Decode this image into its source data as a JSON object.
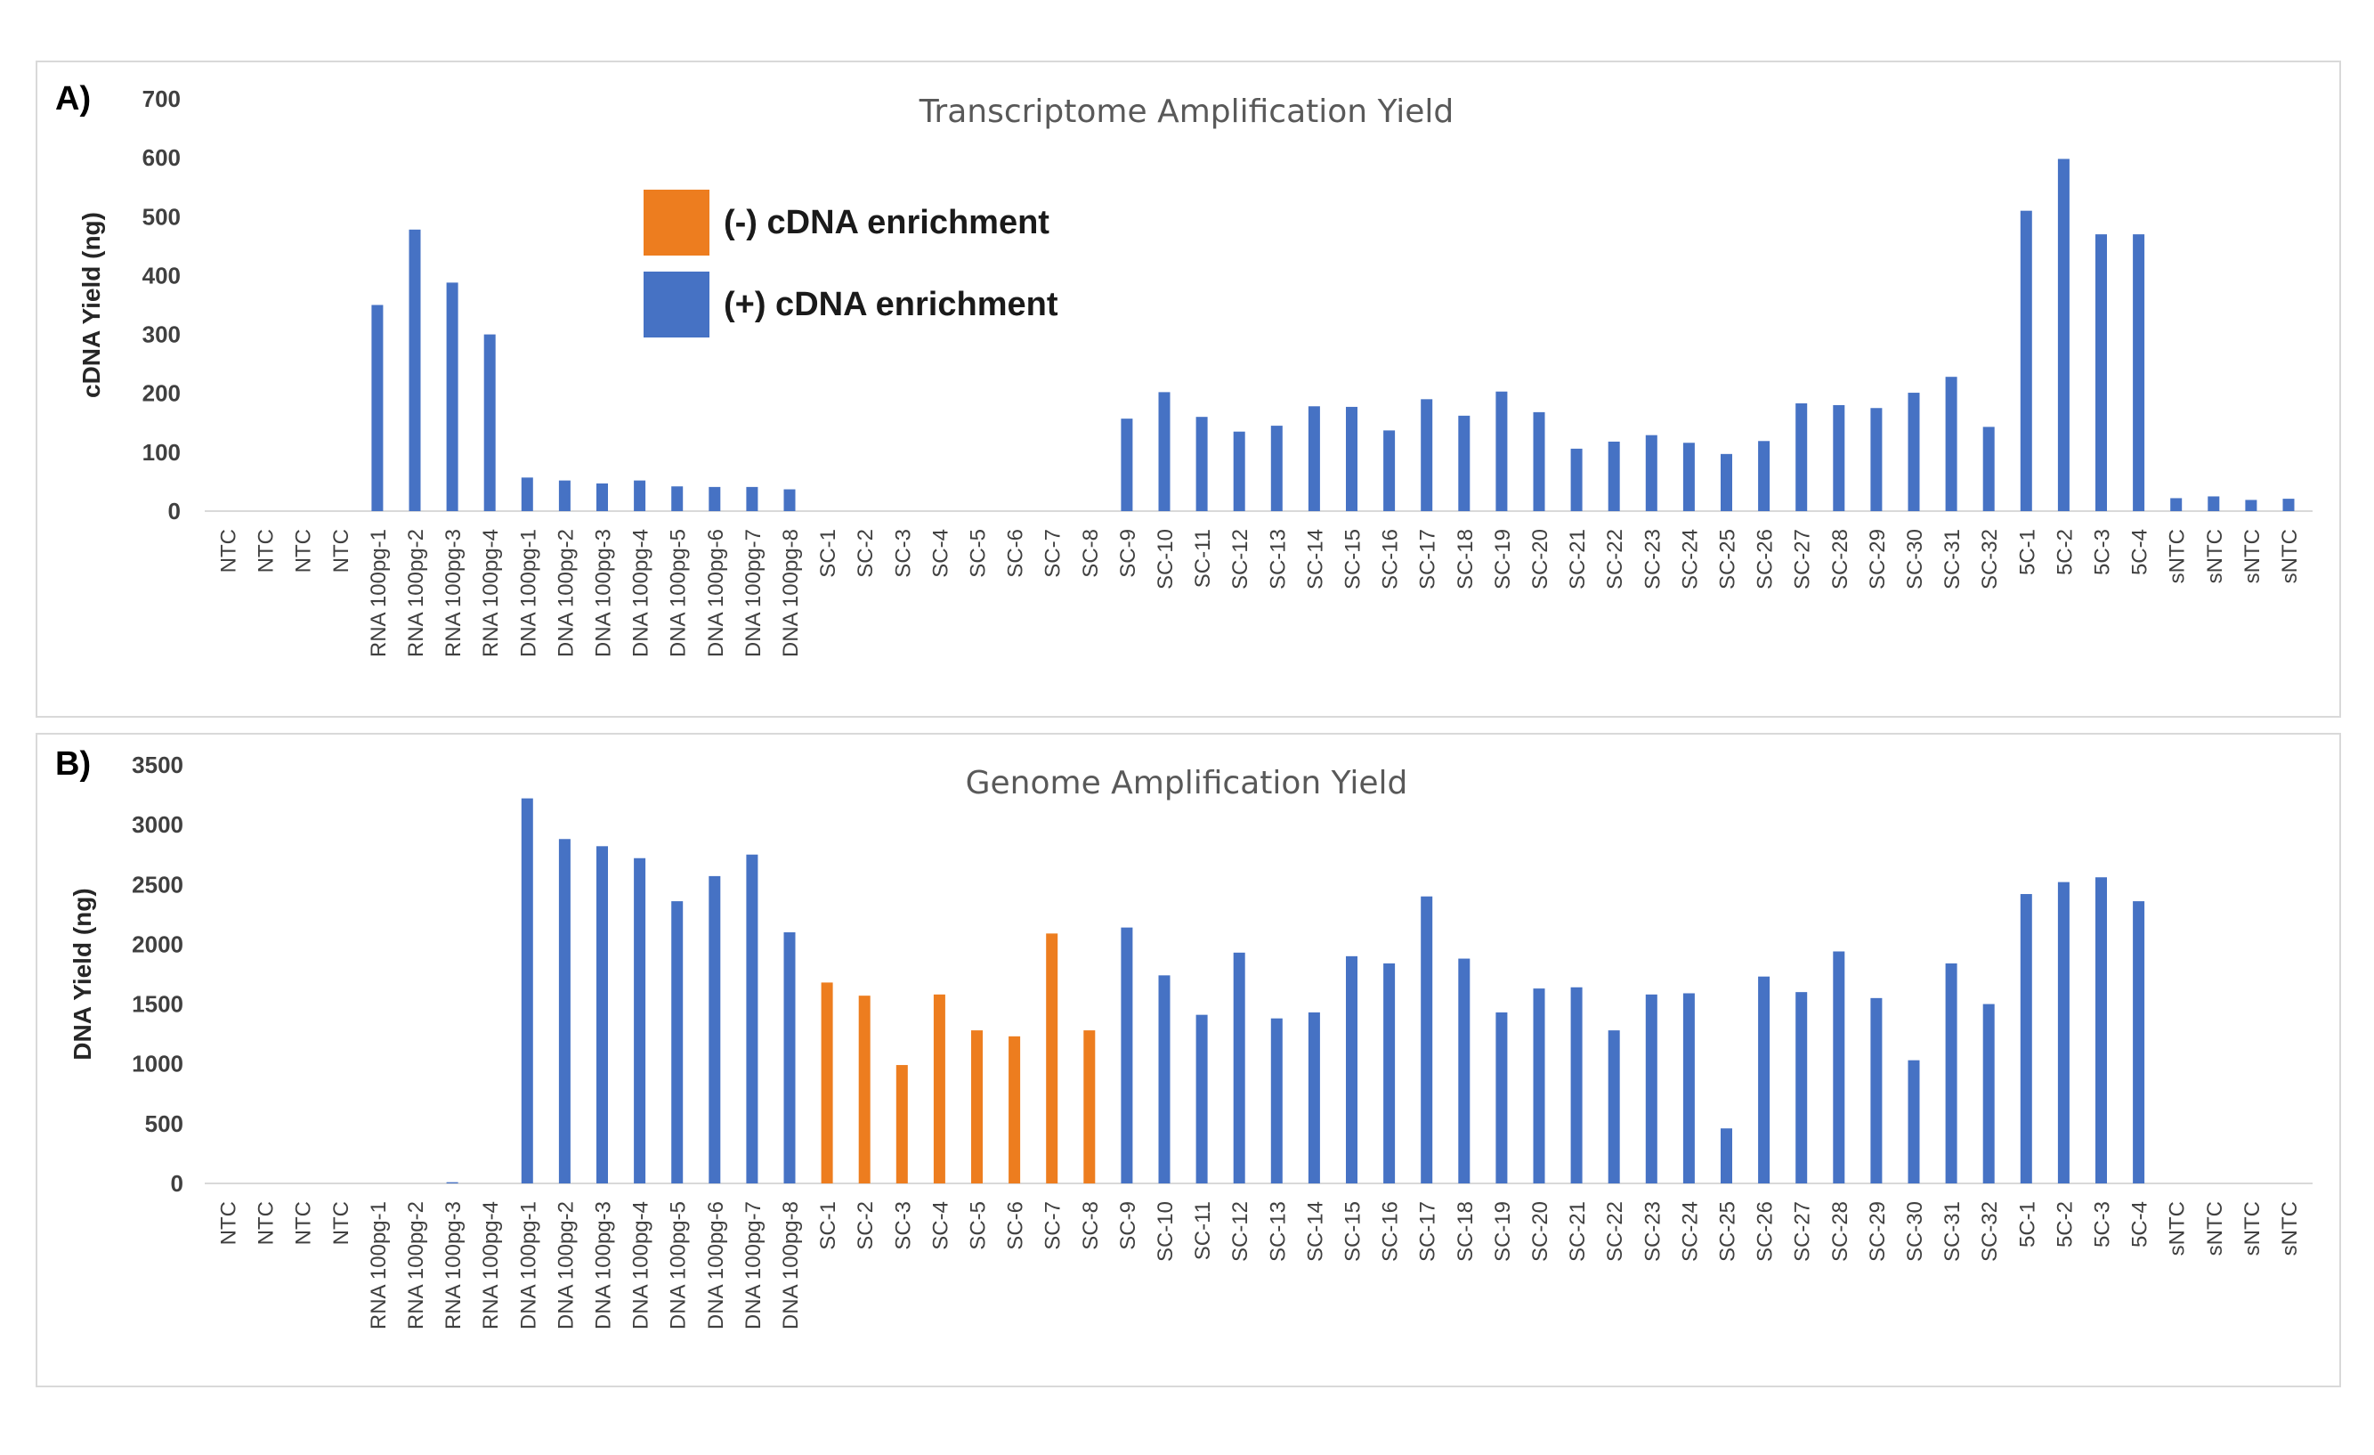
{
  "categories": [
    "NTC",
    "NTC",
    "NTC",
    "NTC",
    "RNA 100pg-1",
    "RNA 100pg-2",
    "RNA 100pg-3",
    "RNA 100pg-4",
    "DNA 100pg-1",
    "DNA 100pg-2",
    "DNA 100pg-3",
    "DNA 100pg-4",
    "DNA 100pg-5",
    "DNA 100pg-6",
    "DNA 100pg-7",
    "DNA 100pg-8",
    "SC-1",
    "SC-2",
    "SC-3",
    "SC-4",
    "SC-5",
    "SC-6",
    "SC-7",
    "SC-8",
    "SC-9",
    "SC-10",
    "SC-11",
    "SC-12",
    "SC-13",
    "SC-14",
    "SC-15",
    "SC-16",
    "SC-17",
    "SC-18",
    "SC-19",
    "SC-20",
    "SC-21",
    "SC-22",
    "SC-23",
    "SC-24",
    "SC-25",
    "SC-26",
    "SC-27",
    "SC-28",
    "SC-29",
    "SC-30",
    "SC-31",
    "SC-32",
    "5C-1",
    "5C-2",
    "5C-3",
    "5C-4",
    "sNTC",
    "sNTC",
    "sNTC",
    "sNTC"
  ],
  "colors": {
    "minus": "#ED7D1F",
    "plus": "#4672C4",
    "axis": "#d9d9d9",
    "title": "#595959",
    "tick": "#404040"
  },
  "legend": {
    "minus_label": "(-) cDNA enrichment",
    "plus_label": "(+) cDNA enrichment"
  },
  "chart_data": [
    {
      "panel_label": "A)",
      "type": "bar",
      "title": "Transcriptome Amplification Yield",
      "ylabel": "cDNA Yield (ng)",
      "ylim": [
        0,
        700
      ],
      "yticks": [
        0,
        100,
        200,
        300,
        400,
        500,
        600,
        700
      ],
      "grid": false,
      "series": [
        {
          "name": "(+) cDNA enrichment",
          "values": [
            0,
            0,
            0,
            0,
            350,
            478,
            388,
            300,
            57,
            52,
            47,
            52,
            42,
            41,
            41,
            37,
            0,
            0,
            0,
            0,
            0,
            0,
            0,
            0,
            157,
            202,
            160,
            135,
            145,
            178,
            177,
            137,
            190,
            162,
            203,
            168,
            106,
            118,
            129,
            116,
            97,
            119,
            183,
            180,
            175,
            201,
            228,
            143,
            510,
            598,
            470,
            470,
            22,
            25,
            19,
            21
          ]
        },
        {
          "name": "(-) cDNA enrichment",
          "values": [
            0,
            0,
            0,
            0,
            0,
            0,
            0,
            0,
            0,
            0,
            0,
            0,
            0,
            0,
            0,
            0,
            0,
            0,
            0,
            0,
            0,
            0,
            0,
            0,
            0,
            0,
            0,
            0,
            0,
            0,
            0,
            0,
            0,
            0,
            0,
            0,
            0,
            0,
            0,
            0,
            0,
            0,
            0,
            0,
            0,
            0,
            0,
            0,
            0,
            0,
            0,
            0,
            0,
            0,
            0,
            0
          ]
        }
      ]
    },
    {
      "panel_label": "B)",
      "type": "bar",
      "title": "Genome Amplification Yield",
      "ylabel": "DNA Yield (ng)",
      "ylim": [
        0,
        3500
      ],
      "yticks": [
        0,
        500,
        1000,
        1500,
        2000,
        2500,
        3000,
        3500
      ],
      "grid": false,
      "series": [
        {
          "name": "(+) cDNA enrichment",
          "values": [
            0,
            0,
            0,
            0,
            0,
            0,
            10,
            0,
            3220,
            2880,
            2820,
            2720,
            2360,
            2570,
            2750,
            2100,
            0,
            0,
            0,
            0,
            0,
            0,
            0,
            0,
            2140,
            1740,
            1410,
            1930,
            1380,
            1430,
            1900,
            1840,
            2400,
            1880,
            1430,
            1630,
            1640,
            1280,
            1580,
            1590,
            460,
            1730,
            1600,
            1940,
            1550,
            1030,
            1840,
            1500,
            2420,
            2520,
            2560,
            2360,
            0,
            0,
            0,
            0
          ]
        },
        {
          "name": "(-) cDNA enrichment",
          "values": [
            0,
            0,
            0,
            0,
            0,
            0,
            0,
            0,
            0,
            0,
            0,
            0,
            0,
            0,
            0,
            0,
            1680,
            1570,
            990,
            1580,
            1280,
            1230,
            2090,
            1280,
            0,
            0,
            0,
            0,
            0,
            0,
            0,
            0,
            0,
            0,
            0,
            0,
            0,
            0,
            0,
            0,
            0,
            0,
            0,
            0,
            0,
            0,
            0,
            0,
            0,
            0,
            0,
            0,
            0,
            0,
            0,
            0
          ]
        }
      ]
    }
  ]
}
